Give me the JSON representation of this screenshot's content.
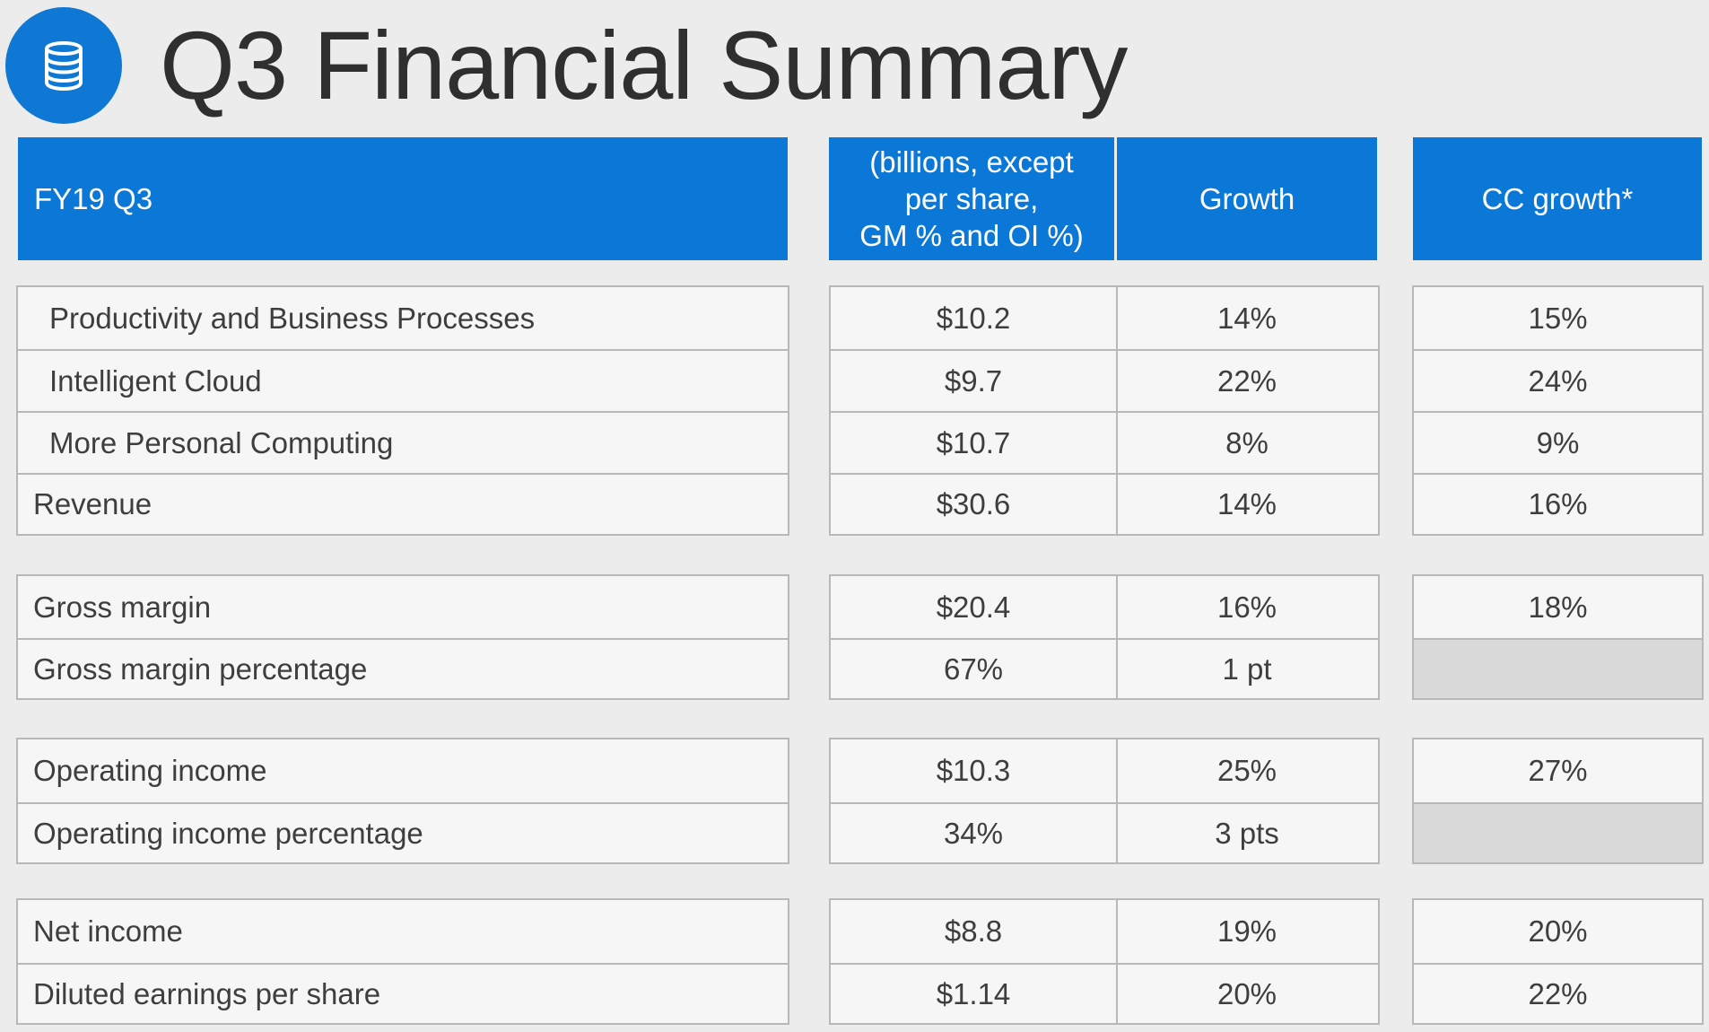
{
  "header": {
    "title": "Q3 Financial Summary",
    "logo_icon": "database-icon",
    "accent_color": "#0b78d8"
  },
  "table": {
    "columns": {
      "label": "FY19 Q3",
      "value_line1": "(billions, except",
      "value_line2": "per share,",
      "value_line3": "GM % and OI %)",
      "growth": "Growth",
      "cc_growth": "CC growth*"
    },
    "groups": [
      {
        "rows": [
          {
            "label": "Productivity and Business Processes",
            "value": "$10.2",
            "growth": "14%",
            "cc": "15%"
          },
          {
            "label": "Intelligent Cloud",
            "value": "$9.7",
            "growth": "22%",
            "cc": "24%"
          },
          {
            "label": "More Personal Computing",
            "value": "$10.7",
            "growth": "8%",
            "cc": "9%"
          },
          {
            "label": "Revenue",
            "value": "$30.6",
            "growth": "14%",
            "cc": "16%"
          }
        ]
      },
      {
        "rows": [
          {
            "label": "Gross margin",
            "value": "$20.4",
            "growth": "16%",
            "cc": "18%"
          },
          {
            "label": "Gross margin percentage",
            "value": "67%",
            "growth": "1 pt",
            "cc": ""
          }
        ]
      },
      {
        "rows": [
          {
            "label": "Operating income",
            "value": "$10.3",
            "growth": "25%",
            "cc": "27%"
          },
          {
            "label": "Operating income percentage",
            "value": "34%",
            "growth": "3 pts",
            "cc": ""
          }
        ]
      },
      {
        "rows": [
          {
            "label": "Net income",
            "value": "$8.8",
            "growth": "19%",
            "cc": "20%"
          },
          {
            "label": "Diluted earnings per share",
            "value": "$1.14",
            "growth": "20%",
            "cc": "22%"
          }
        ]
      }
    ]
  }
}
